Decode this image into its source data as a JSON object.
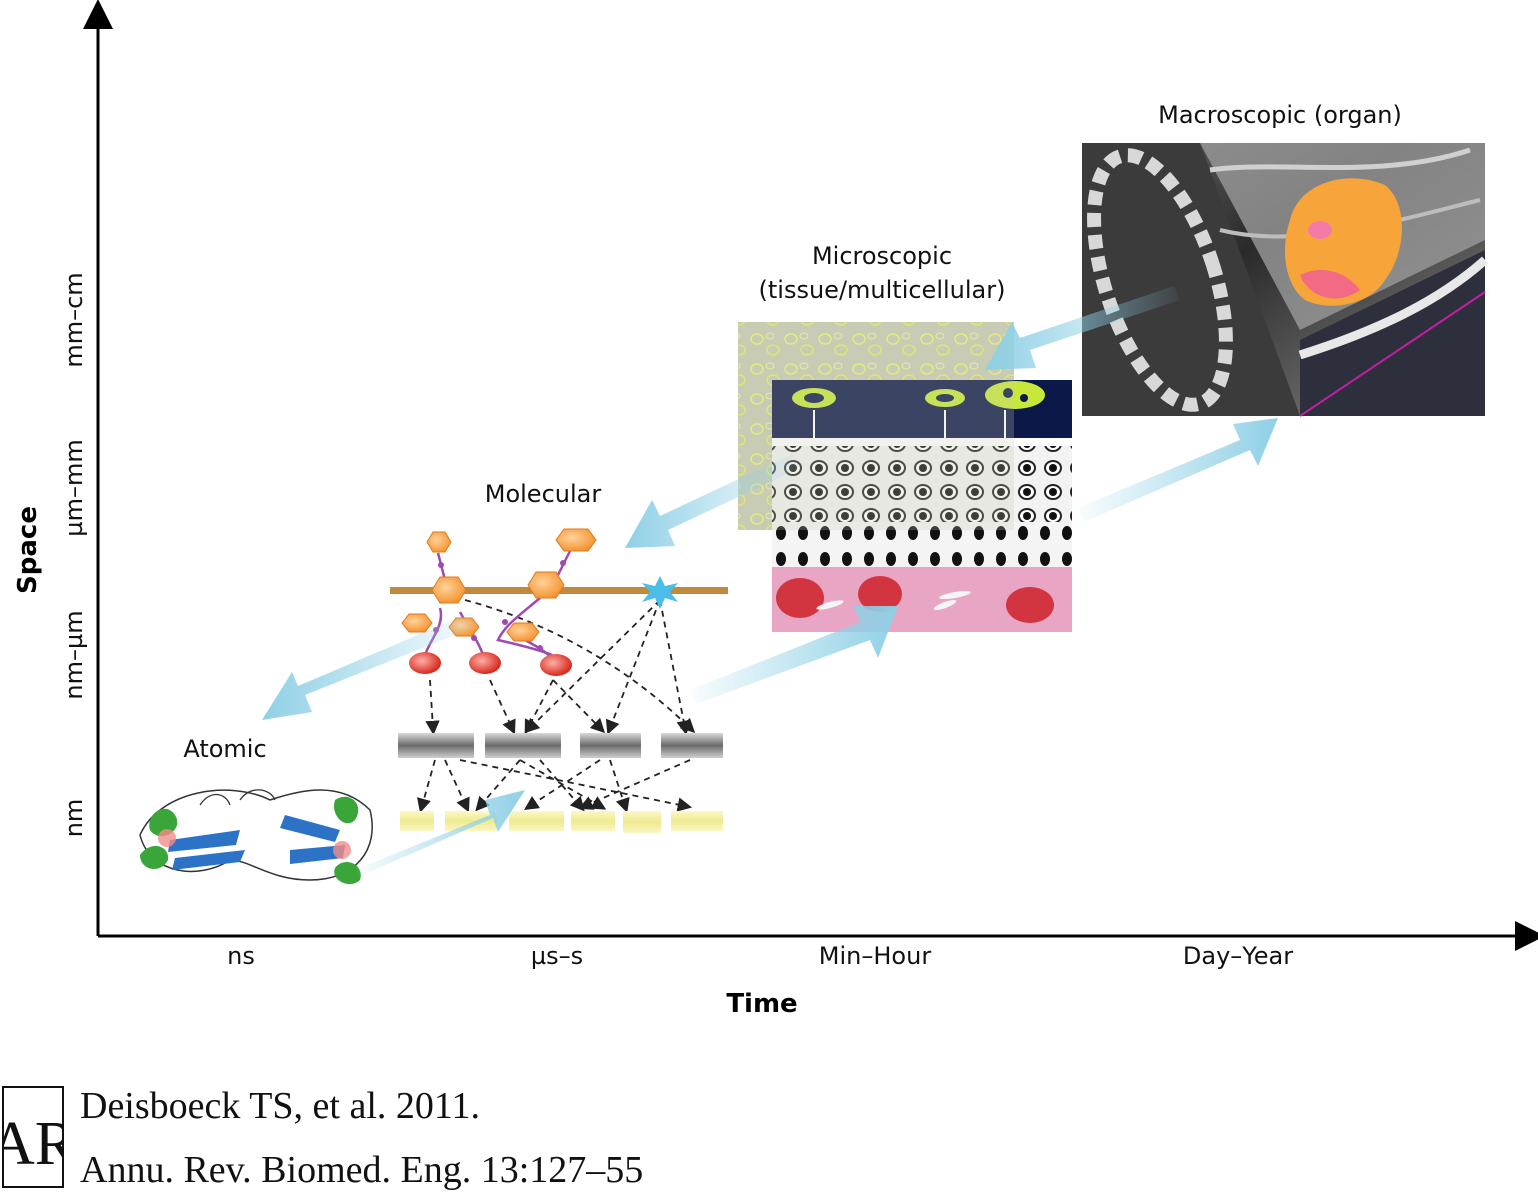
{
  "axes": {
    "x_title": "Time",
    "y_title": "Space",
    "x_ticks": [
      "ns",
      "µs–s",
      "Min–Hour",
      "Day–Year"
    ],
    "y_ticks": [
      "nm",
      "nm–µm",
      "µm–mm",
      "mm–cm"
    ]
  },
  "scales": {
    "atomic": "Atomic",
    "molecular": "Molecular",
    "microscopic_line1": "Microscopic",
    "microscopic_line2": "(tissue/multicellular)",
    "macroscopic": "Macroscopic (organ)"
  },
  "citation": {
    "logo_text": "AR",
    "line1": "Deisboeck TS, et al. 2011.",
    "line2": "Annu. Rev. Biomed. Eng. 13:127–55"
  },
  "colors": {
    "arrow": "#8fd0e6",
    "axis": "#000000",
    "membrane": "#c08a3e",
    "hexagon": "#f7a64a",
    "ellipse": "#e23a2e",
    "gene_bar": "#8a8a8a",
    "product_bar": "#f0ee9a",
    "tumor": "#f7a53a"
  }
}
